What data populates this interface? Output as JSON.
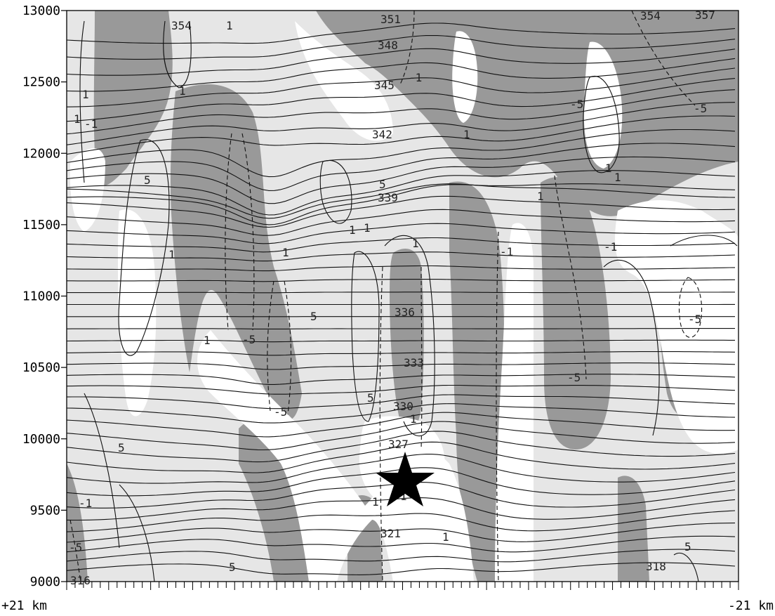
{
  "chart_data": {
    "type": "contour",
    "title": "",
    "ylabel": "",
    "xlabel": "",
    "ylim": [
      9000,
      13000
    ],
    "y_ticks": [
      "9000",
      "9500",
      "10000",
      "10500",
      "11000",
      "11500",
      "12000",
      "12500",
      "13000"
    ],
    "x_end_labels": {
      "left": "+21 km",
      "right": "-21 km"
    },
    "x_minor_ticks": 80,
    "shading": {
      "dark": "#999999",
      "light": "#e6e6e6",
      "background": "#ffffff"
    },
    "isentrope_labels": [
      "316",
      "318",
      "321",
      "327",
      "330",
      "333",
      "336",
      "339",
      "342",
      "345",
      "348",
      "351",
      "354",
      "354",
      "357"
    ],
    "vertical_velocity_labels": [
      "1",
      "1",
      "1",
      "1",
      "1",
      "1",
      "1",
      "1",
      "1",
      "1",
      "1",
      "1",
      "1",
      "1",
      "1",
      "1",
      "1",
      "1",
      "5",
      "5",
      "5",
      "5",
      "5",
      "5",
      "5",
      "-1",
      "-1",
      "-1",
      "-1",
      "-1",
      "-5",
      "-5",
      "-5",
      "-5",
      "-5",
      "-5",
      "-5"
    ],
    "marker": {
      "type": "star",
      "color": "#000000"
    }
  }
}
